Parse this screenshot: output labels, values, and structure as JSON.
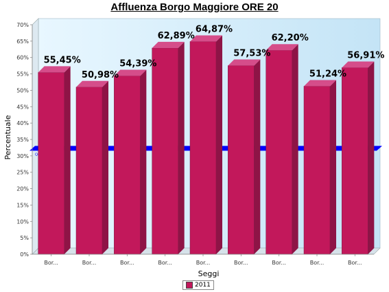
{
  "chart_data": {
    "type": "bar",
    "title": "Affluenza Borgo Maggiore ORE 20",
    "xlabel": "Seggi",
    "ylabel": "Percentuale",
    "categories": [
      "Bor...",
      "Bor...",
      "Bor...",
      "Bor...",
      "Bor...",
      "Bor...",
      "Bor...",
      "Bor...",
      "Bor..."
    ],
    "series": [
      {
        "name": "2011",
        "color": "#c2185b",
        "values": [
          55.45,
          50.98,
          54.39,
          62.89,
          64.87,
          57.53,
          62.2,
          51.24,
          56.91
        ],
        "labels": [
          "55,45%",
          "50,98%",
          "54,39%",
          "62,89%",
          "64,87%",
          "57,53%",
          "62,20%",
          "51,24%",
          "56,91%"
        ]
      }
    ],
    "ylim": [
      0,
      70
    ],
    "yticks": [
      "0%",
      "5%",
      "10%",
      "15%",
      "20%",
      "25%",
      "30%",
      "35%",
      "40%",
      "45%",
      "50%",
      "55%",
      "60%",
      "65%",
      "70%"
    ],
    "reference_line": {
      "label": "Quorum (32%)",
      "value": 32,
      "color": "#0000ff"
    },
    "legend": {
      "position": "bottom-center",
      "entries": [
        "2011"
      ]
    },
    "grid": false
  }
}
